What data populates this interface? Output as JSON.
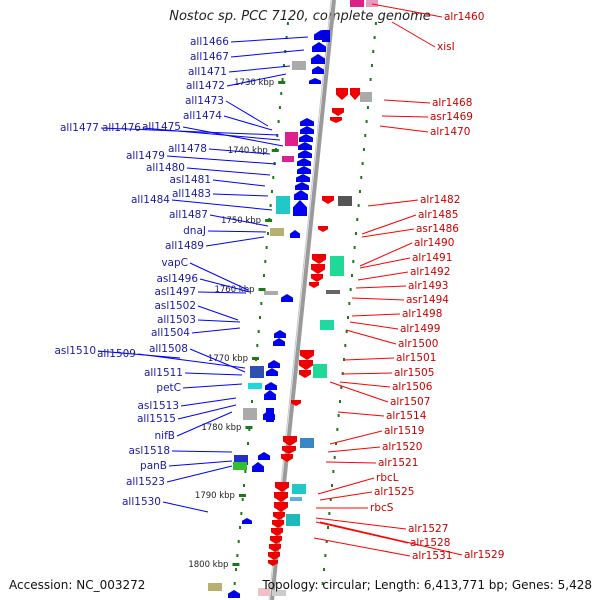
{
  "header": {
    "title": "Nostoc sp. PCC 7120, complete genome"
  },
  "footer": {
    "accession": "Accession: NC_003272",
    "summary": "Topology: circular; Length: 6,413,771 bp; Genes: 5,428"
  },
  "colors": {
    "left_label": "#1a1aa8",
    "right_label": "#cc0000",
    "left_leader": "#0000ff",
    "right_leader": "#ff0000",
    "forward_gene": "#0000ee",
    "reverse_gene": "#ee0000",
    "tick": "#1a7a1a",
    "backbone": "#888888"
  },
  "scale": {
    "ticks": [
      "1730 kbp",
      "1740 kbp",
      "1750 kbp",
      "1760 kbp",
      "1770 kbp",
      "1780 kbp",
      "1790 kbp",
      "1800 kbp"
    ]
  },
  "left_genes": [
    "all1466",
    "all1467",
    "all1471",
    "all1472",
    "all1473",
    "all1474",
    "all1477",
    "all1476",
    "all1475",
    "all1478",
    "all1479",
    "all1480",
    "asl1481",
    "all1483",
    "all1484",
    "all1487",
    "dnaJ",
    "all1489",
    "vapC",
    "asl1496",
    "asl1497",
    "asl1502",
    "all1503",
    "all1504",
    "asl1510",
    "all1509",
    "all1508",
    "all1511",
    "petC",
    "asl1513",
    "all1515",
    "nifB",
    "asl1518",
    "panB",
    "all1523",
    "all1530"
  ],
  "right_genes": [
    "alr1460",
    "xisI",
    "alr1468",
    "asr1469",
    "alr1470",
    "alr1482",
    "alr1485",
    "asr1486",
    "alr1490",
    "alr1491",
    "alr1492",
    "alr1493",
    "asr1494",
    "alr1498",
    "alr1499",
    "alr1500",
    "alr1501",
    "alr1505",
    "alr1506",
    "alr1507",
    "alr1514",
    "alr1519",
    "alr1520",
    "alr1521",
    "rbcL",
    "alr1525",
    "rbcS",
    "alr1527",
    "alr1528",
    "alr1529",
    "alr1531"
  ]
}
